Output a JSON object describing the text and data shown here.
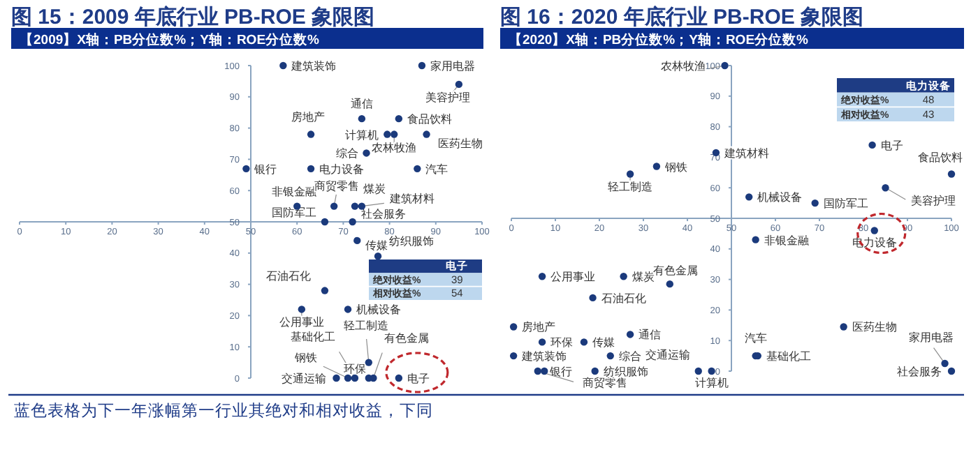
{
  "chart_data": [
    {
      "type": "scatter",
      "title": "图 15：2009 年底行业 PB-ROE 象限图",
      "subtitle": "【2009】X轴：PB分位数%；Y轴：ROE分位数%",
      "marker": "circle",
      "grid": false,
      "series": [
        {
          "color": "#1b3a7c",
          "x": [
            57,
            87,
            95,
            74,
            82,
            63,
            79.5,
            81,
            88,
            75,
            49,
            63,
            86,
            60,
            68,
            72.5,
            74,
            66,
            72,
            73,
            77.5,
            66,
            61,
            71,
            75.5,
            68.5,
            71,
            72.5,
            75.5,
            76.5,
            82
          ],
          "values": [
            100,
            100,
            94,
            83,
            83,
            78,
            78,
            78,
            78,
            72,
            67,
            67,
            67,
            55,
            55,
            55,
            55,
            50,
            50,
            44,
            39,
            28,
            22,
            22,
            5,
            0,
            0,
            0,
            0,
            0,
            0
          ]
        }
      ],
      "xlim": [
        0,
        100
      ],
      "ylim": [
        0,
        100
      ],
      "xticks": [
        0,
        10,
        20,
        30,
        40,
        50,
        60,
        70,
        80,
        90,
        100
      ],
      "yticks": [
        0,
        10,
        20,
        30,
        40,
        50,
        60,
        70,
        80,
        90,
        100
      ],
      "annotations": [
        {
          "text": "建筑装饰",
          "x": 57,
          "y": 100
        },
        {
          "text": "家用电器",
          "x": 87,
          "y": 100
        },
        {
          "text": "美容护理",
          "x": 95,
          "y": 94
        },
        {
          "text": "通信",
          "x": 74,
          "y": 83
        },
        {
          "text": "食品饮料",
          "x": 82,
          "y": 83
        },
        {
          "text": "房地产",
          "x": 63,
          "y": 78
        },
        {
          "text": "计算机",
          "x": 79.5,
          "y": 78
        },
        {
          "text": "农林牧渔",
          "x": 81,
          "y": 78
        },
        {
          "text": "医药生物",
          "x": 88,
          "y": 78
        },
        {
          "text": "综合",
          "x": 75,
          "y": 72
        },
        {
          "text": "银行",
          "x": 49,
          "y": 67
        },
        {
          "text": "电力设备",
          "x": 63,
          "y": 67
        },
        {
          "text": "汽车",
          "x": 86,
          "y": 67
        },
        {
          "text": "非银金融",
          "x": 60,
          "y": 55
        },
        {
          "text": "商贸零售",
          "x": 68,
          "y": 55
        },
        {
          "text": "煤炭",
          "x": 72.5,
          "y": 55
        },
        {
          "text": "建筑材料",
          "x": 74,
          "y": 55
        },
        {
          "text": "国防军工",
          "x": 66,
          "y": 50
        },
        {
          "text": "社会服务",
          "x": 72,
          "y": 50
        },
        {
          "text": "传媒",
          "x": 73,
          "y": 44
        },
        {
          "text": "纺织服饰",
          "x": 77.5,
          "y": 39
        },
        {
          "text": "石油石化",
          "x": 66,
          "y": 28
        },
        {
          "text": "公用事业",
          "x": 61,
          "y": 22
        },
        {
          "text": "机械设备",
          "x": 71,
          "y": 22
        },
        {
          "text": "轻工制造",
          "x": 75.5,
          "y": 5
        },
        {
          "text": "交通运输",
          "x": 68.5,
          "y": 0
        },
        {
          "text": "钢铁",
          "x": 71,
          "y": 0
        },
        {
          "text": "基础化工",
          "x": 72.5,
          "y": 0
        },
        {
          "text": "环保",
          "x": 75.5,
          "y": 0
        },
        {
          "text": "有色金属",
          "x": 76.5,
          "y": 0
        },
        {
          "text": "电子",
          "x": 82,
          "y": 0
        },
        "电子",
        "绝对收益%",
        "39",
        "相对收益%",
        "54",
        "蓝色表格为下一年涨幅第一行业其绝对和相对收益，下同"
      ]
    },
    {
      "type": "scatter",
      "title": "图 16：2020 年底行业 PB-ROE 象限图",
      "subtitle": "【2020】X轴：PB分位数%；Y轴：ROE分位数%",
      "marker": "circle",
      "grid": false,
      "series": [
        {
          "color": "#1b3a7c",
          "x": [
            48.5,
            82,
            46.5,
            33,
            27,
            100,
            85,
            54,
            69,
            82.5,
            55.5,
            7,
            25.5,
            36,
            18.5,
            0.5,
            7,
            16.5,
            27,
            75.5,
            55.5,
            56,
            0.5,
            22.5,
            98.5,
            7.5,
            6,
            19,
            42.5,
            45.5,
            100
          ],
          "values": [
            100,
            74,
            71.5,
            67,
            64.5,
            64.5,
            60,
            57,
            55,
            46,
            43,
            31,
            31,
            28.5,
            24,
            14.5,
            9.5,
            9.5,
            12,
            14.5,
            5,
            5,
            5,
            5,
            2.5,
            0,
            0,
            0,
            0,
            0,
            0
          ]
        }
      ],
      "xlim": [
        0,
        100
      ],
      "ylim": [
        0,
        100
      ],
      "xticks": [
        0,
        10,
        20,
        30,
        40,
        50,
        60,
        70,
        80,
        90,
        100
      ],
      "yticks": [
        0,
        10,
        20,
        30,
        40,
        50,
        60,
        70,
        80,
        90,
        100
      ],
      "annotations": [
        {
          "text": "农林牧渔",
          "x": 48.5,
          "y": 100
        },
        {
          "text": "电子",
          "x": 82,
          "y": 74
        },
        {
          "text": "建筑材料",
          "x": 46.5,
          "y": 71.5
        },
        {
          "text": "钢铁",
          "x": 33,
          "y": 67
        },
        {
          "text": "轻工制造",
          "x": 27,
          "y": 64.5
        },
        {
          "text": "食品饮料",
          "x": 100,
          "y": 64.5
        },
        {
          "text": "美容护理",
          "x": 85,
          "y": 60
        },
        {
          "text": "机械设备",
          "x": 54,
          "y": 57
        },
        {
          "text": "国防军工",
          "x": 69,
          "y": 55
        },
        {
          "text": "电力设备",
          "x": 82.5,
          "y": 46
        },
        {
          "text": "非银金融",
          "x": 55.5,
          "y": 43
        },
        {
          "text": "公用事业",
          "x": 7,
          "y": 31
        },
        {
          "text": "煤炭",
          "x": 25.5,
          "y": 31
        },
        {
          "text": "有色金属",
          "x": 36,
          "y": 28.5
        },
        {
          "text": "石油石化",
          "x": 18.5,
          "y": 24
        },
        {
          "text": "房地产",
          "x": 0.5,
          "y": 14.5
        },
        {
          "text": "环保",
          "x": 7,
          "y": 9.5
        },
        {
          "text": "传媒",
          "x": 16.5,
          "y": 9.5
        },
        {
          "text": "通信",
          "x": 27,
          "y": 12
        },
        {
          "text": "医药生物",
          "x": 75.5,
          "y": 14.5
        },
        {
          "text": "汽车",
          "x": 55.5,
          "y": 5
        },
        {
          "text": "基础化工",
          "x": 56,
          "y": 5
        },
        {
          "text": "建筑装饰",
          "x": 0.5,
          "y": 5
        },
        {
          "text": "综合",
          "x": 22.5,
          "y": 5
        },
        {
          "text": "家用电器",
          "x": 98.5,
          "y": 2.5
        },
        {
          "text": "银行",
          "x": 7.5,
          "y": 0
        },
        {
          "text": "商贸零售",
          "x": 6,
          "y": 0
        },
        {
          "text": "纺织服饰",
          "x": 19,
          "y": 0
        },
        {
          "text": "交通运输",
          "x": 42.5,
          "y": 0
        },
        {
          "text": "计算机",
          "x": 45.5,
          "y": 0
        },
        {
          "text": "社会服务",
          "x": 100,
          "y": 0
        },
        "电力设备",
        "绝对收益%",
        "48",
        "相对收益%",
        "43"
      ]
    }
  ]
}
